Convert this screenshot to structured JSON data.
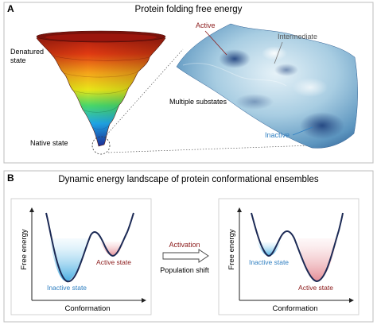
{
  "panel_a": {
    "letter": "A",
    "title": "Protein folding free energy",
    "labels": {
      "denatured": [
        "Denatured",
        "state"
      ],
      "native": "Native state",
      "active": "Active",
      "intermediate": "Intermediate",
      "multiple_substates": "Multiple substates",
      "inactive": "Inactive"
    }
  },
  "panel_b": {
    "letter": "B",
    "title": "Dynamic energy landscape of protein conformational ensembles",
    "left_plot": {
      "ylabel": "Free energy",
      "xlabel": "Conformation",
      "left_well_label": "Inactive state",
      "right_well_label": "Active state"
    },
    "arrow": {
      "top_label": "Activation",
      "bottom_label": "Population shift"
    },
    "right_plot": {
      "ylabel": "Free energy",
      "xlabel": "Conformation",
      "left_well_label": "Inactive state",
      "right_well_label": "Active state"
    }
  },
  "colors": {
    "inactive": "#2f7fc1",
    "active": "#8b1a1a",
    "curve": "#1c2a55",
    "title": "#111111"
  }
}
